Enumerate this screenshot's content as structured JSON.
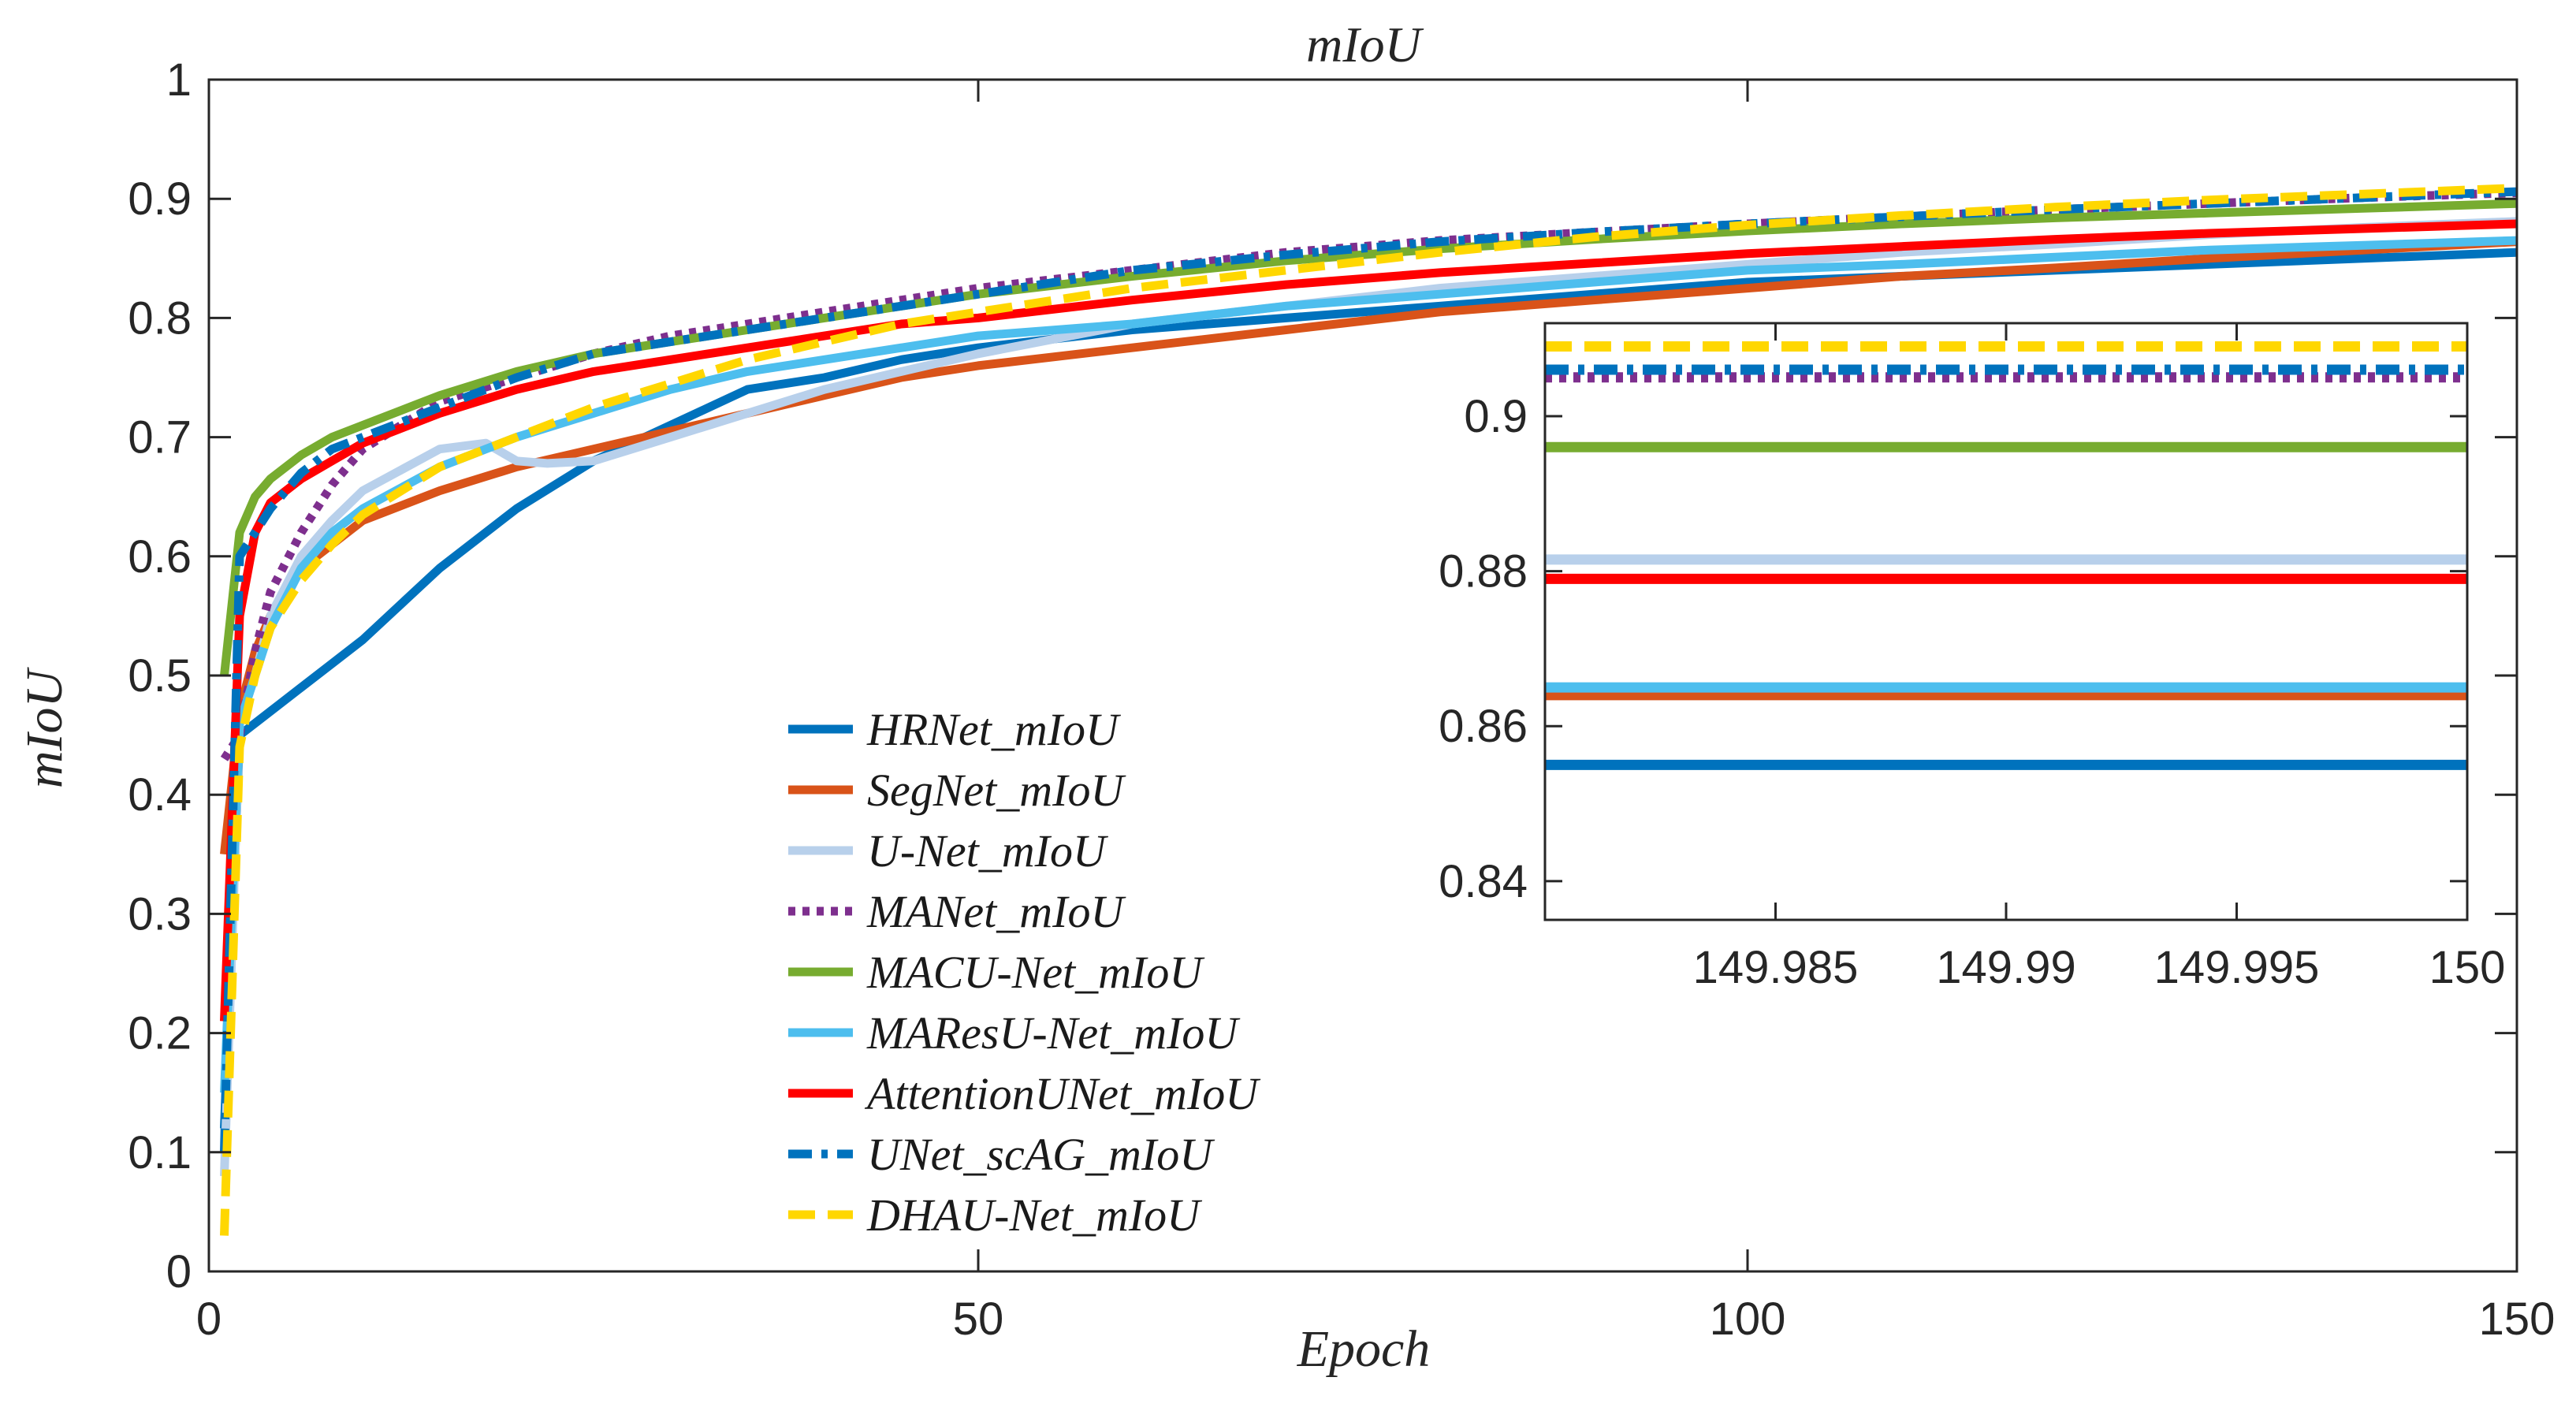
{
  "chart_data": [
    {
      "type": "line",
      "title": "mIoU",
      "xlabel": "Epoch",
      "ylabel": "mIoU",
      "xlim": [
        0,
        150
      ],
      "ylim": [
        0,
        1
      ],
      "xticks": [
        0,
        50,
        100,
        150
      ],
      "yticks": [
        0,
        0.1,
        0.2,
        0.3,
        0.4,
        0.5,
        0.6,
        0.7,
        0.8,
        0.9,
        1
      ],
      "xtick_labels": [
        "0",
        "50",
        "100",
        "150"
      ],
      "ytick_labels": [
        "0",
        "0.1",
        "0.2",
        "0.3",
        "0.4",
        "0.5",
        "0.6",
        "0.7",
        "0.8",
        "0.9",
        "1"
      ],
      "grid": false,
      "legend_position": "lower-center",
      "series": [
        {
          "name": "HRNet_mIoU",
          "color": "#0072BD",
          "style": "solid",
          "x": [
            1,
            2,
            3,
            4,
            6,
            8,
            10,
            15,
            20,
            25,
            30,
            35,
            40,
            45,
            50,
            60,
            70,
            80,
            90,
            100,
            110,
            120,
            130,
            140,
            150
          ],
          "y": [
            0.12,
            0.45,
            0.46,
            0.47,
            0.49,
            0.51,
            0.53,
            0.59,
            0.64,
            0.68,
            0.71,
            0.74,
            0.75,
            0.765,
            0.775,
            0.79,
            0.8,
            0.81,
            0.82,
            0.83,
            0.835,
            0.84,
            0.845,
            0.85,
            0.855
          ]
        },
        {
          "name": "SegNet_mIoU",
          "color": "#D95319",
          "style": "solid",
          "x": [
            1,
            2,
            3,
            4,
            6,
            8,
            10,
            15,
            20,
            25,
            30,
            35,
            40,
            45,
            50,
            60,
            70,
            80,
            90,
            100,
            110,
            120,
            130,
            140,
            150
          ],
          "y": [
            0.35,
            0.47,
            0.52,
            0.55,
            0.59,
            0.61,
            0.63,
            0.655,
            0.675,
            0.69,
            0.705,
            0.72,
            0.735,
            0.75,
            0.76,
            0.775,
            0.79,
            0.805,
            0.815,
            0.825,
            0.835,
            0.842,
            0.85,
            0.857,
            0.864
          ]
        },
        {
          "name": "U-Net_mIoU",
          "color": "#B8D0EB",
          "style": "solid",
          "x": [
            1,
            2,
            3,
            4,
            6,
            8,
            10,
            15,
            18,
            20,
            22,
            25,
            30,
            35,
            40,
            45,
            50,
            60,
            70,
            80,
            90,
            100,
            110,
            120,
            130,
            140,
            150
          ],
          "y": [
            0.08,
            0.46,
            0.5,
            0.55,
            0.6,
            0.63,
            0.655,
            0.69,
            0.695,
            0.68,
            0.678,
            0.68,
            0.7,
            0.72,
            0.74,
            0.755,
            0.77,
            0.795,
            0.81,
            0.825,
            0.835,
            0.845,
            0.855,
            0.862,
            0.87,
            0.876,
            0.881
          ]
        },
        {
          "name": "MANet_mIoU",
          "color": "#7E2F8E",
          "style": "dotted",
          "x": [
            1,
            2,
            3,
            4,
            6,
            8,
            10,
            15,
            20,
            25,
            30,
            35,
            40,
            45,
            50,
            60,
            70,
            80,
            90,
            100,
            110,
            120,
            130,
            140,
            150
          ],
          "y": [
            0.43,
            0.45,
            0.52,
            0.57,
            0.62,
            0.66,
            0.69,
            0.73,
            0.75,
            0.77,
            0.785,
            0.795,
            0.805,
            0.815,
            0.825,
            0.84,
            0.855,
            0.865,
            0.872,
            0.879,
            0.885,
            0.891,
            0.896,
            0.901,
            0.905
          ]
        },
        {
          "name": "MACU-Net_mIoU",
          "color": "#77AC30",
          "style": "solid",
          "x": [
            1,
            2,
            3,
            4,
            6,
            8,
            10,
            15,
            20,
            25,
            30,
            35,
            40,
            45,
            50,
            60,
            70,
            80,
            90,
            100,
            110,
            120,
            130,
            140,
            150
          ],
          "y": [
            0.5,
            0.62,
            0.65,
            0.665,
            0.685,
            0.7,
            0.71,
            0.735,
            0.755,
            0.77,
            0.78,
            0.79,
            0.8,
            0.81,
            0.82,
            0.835,
            0.848,
            0.858,
            0.866,
            0.873,
            0.879,
            0.884,
            0.888,
            0.892,
            0.896
          ]
        },
        {
          "name": "MAResU-Net_mIoU",
          "color": "#4DBEEE",
          "style": "solid",
          "x": [
            1,
            2,
            3,
            4,
            6,
            8,
            10,
            15,
            20,
            25,
            30,
            35,
            40,
            45,
            50,
            60,
            70,
            80,
            90,
            100,
            110,
            120,
            130,
            140,
            150
          ],
          "y": [
            0.15,
            0.46,
            0.5,
            0.54,
            0.59,
            0.62,
            0.64,
            0.675,
            0.7,
            0.72,
            0.74,
            0.755,
            0.765,
            0.775,
            0.785,
            0.795,
            0.81,
            0.82,
            0.83,
            0.84,
            0.845,
            0.851,
            0.857,
            0.861,
            0.865
          ]
        },
        {
          "name": "AttentionUNet_mIoU",
          "color": "#FF0000",
          "style": "solid",
          "x": [
            1,
            2,
            3,
            4,
            6,
            8,
            10,
            15,
            20,
            25,
            30,
            35,
            40,
            45,
            50,
            60,
            70,
            80,
            90,
            100,
            110,
            120,
            130,
            140,
            150
          ],
          "y": [
            0.21,
            0.55,
            0.62,
            0.645,
            0.665,
            0.68,
            0.695,
            0.72,
            0.74,
            0.755,
            0.765,
            0.775,
            0.785,
            0.795,
            0.8,
            0.815,
            0.828,
            0.838,
            0.846,
            0.854,
            0.86,
            0.866,
            0.871,
            0.875,
            0.879
          ]
        },
        {
          "name": "UNet_scAG_mIoU",
          "color": "#0072BD",
          "style": "dashdot",
          "x": [
            1,
            2,
            3,
            4,
            6,
            8,
            10,
            15,
            20,
            25,
            30,
            35,
            40,
            45,
            50,
            60,
            70,
            80,
            90,
            100,
            110,
            120,
            130,
            140,
            150
          ],
          "y": [
            0.1,
            0.6,
            0.62,
            0.64,
            0.67,
            0.69,
            0.7,
            0.725,
            0.75,
            0.77,
            0.78,
            0.79,
            0.8,
            0.81,
            0.82,
            0.84,
            0.853,
            0.864,
            0.872,
            0.879,
            0.885,
            0.891,
            0.896,
            0.901,
            0.906
          ]
        },
        {
          "name": "DHAU-Net_mIoU",
          "color": "#FFD700",
          "style": "dashed",
          "x": [
            1,
            2,
            3,
            4,
            6,
            8,
            10,
            15,
            20,
            25,
            30,
            35,
            40,
            45,
            50,
            60,
            70,
            80,
            90,
            100,
            110,
            120,
            130,
            140,
            150
          ],
          "y": [
            0.03,
            0.44,
            0.5,
            0.54,
            0.58,
            0.61,
            0.635,
            0.675,
            0.7,
            0.725,
            0.745,
            0.765,
            0.78,
            0.795,
            0.805,
            0.825,
            0.84,
            0.855,
            0.868,
            0.878,
            0.886,
            0.893,
            0.899,
            0.904,
            0.909
          ]
        }
      ]
    },
    {
      "type": "line",
      "title": "",
      "xlabel": "",
      "ylabel": "",
      "xlim": [
        149.98,
        150
      ],
      "ylim": [
        0.835,
        0.912
      ],
      "xticks": [
        149.985,
        149.99,
        149.995,
        150
      ],
      "yticks": [
        0.84,
        0.86,
        0.88,
        0.9
      ],
      "xtick_labels": [
        "149.985",
        "149.99",
        "149.995",
        "150"
      ],
      "ytick_labels": [
        "0.84",
        "0.86",
        "0.88",
        "0.9"
      ],
      "grid": false,
      "series": [
        {
          "name": "HRNet_mIoU",
          "color": "#0072BD",
          "style": "solid",
          "x": [
            149.98,
            150
          ],
          "y": [
            0.855,
            0.855
          ]
        },
        {
          "name": "SegNet_mIoU",
          "color": "#D95319",
          "style": "solid",
          "x": [
            149.98,
            150
          ],
          "y": [
            0.864,
            0.864
          ]
        },
        {
          "name": "U-Net_mIoU",
          "color": "#B8D0EB",
          "style": "solid",
          "x": [
            149.98,
            150
          ],
          "y": [
            0.8815,
            0.8815
          ]
        },
        {
          "name": "MANet_mIoU",
          "color": "#7E2F8E",
          "style": "dotted",
          "x": [
            149.98,
            150
          ],
          "y": [
            0.905,
            0.905
          ]
        },
        {
          "name": "MACU-Net_mIoU",
          "color": "#77AC30",
          "style": "solid",
          "x": [
            149.98,
            150
          ],
          "y": [
            0.896,
            0.896
          ]
        },
        {
          "name": "MAResU-Net_mIoU",
          "color": "#4DBEEE",
          "style": "solid",
          "x": [
            149.98,
            150
          ],
          "y": [
            0.865,
            0.865
          ]
        },
        {
          "name": "AttentionUNet_mIoU",
          "color": "#FF0000",
          "style": "solid",
          "x": [
            149.98,
            150
          ],
          "y": [
            0.879,
            0.879
          ]
        },
        {
          "name": "UNet_scAG_mIoU",
          "color": "#0072BD",
          "style": "dashdot",
          "x": [
            149.98,
            150
          ],
          "y": [
            0.906,
            0.906
          ]
        },
        {
          "name": "DHAU-Net_mIoU",
          "color": "#FFD700",
          "style": "dashed",
          "x": [
            149.98,
            150
          ],
          "y": [
            0.909,
            0.909
          ]
        }
      ]
    }
  ]
}
